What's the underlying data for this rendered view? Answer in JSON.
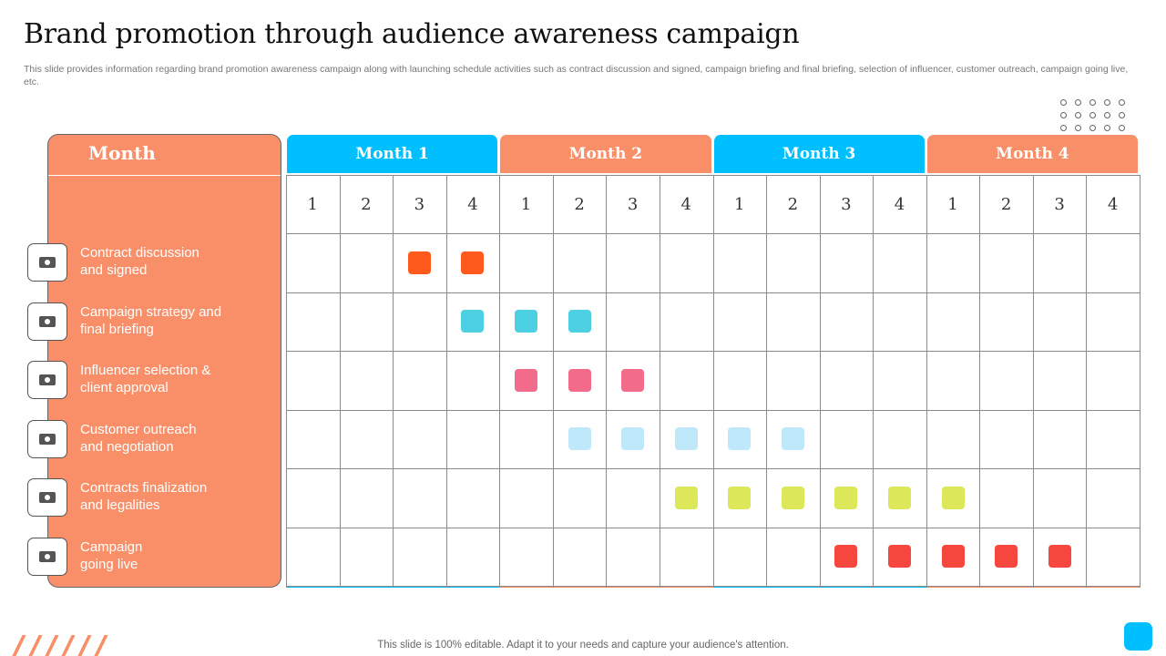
{
  "title": "Brand promotion through audience awareness campaign",
  "subtitle": "This slide provides information regarding brand promotion awareness campaign along with launching schedule activities such as contract discussion and signed, campaign briefing and final briefing, selection of influencer, customer outreach, campaign going live, etc.",
  "left_header": "Month",
  "months": [
    {
      "label": "Month 1",
      "color": "#00bfff"
    },
    {
      "label": "Month 2",
      "color": "#f88f68"
    },
    {
      "label": "Month 3",
      "color": "#00bfff"
    },
    {
      "label": "Month 4",
      "color": "#f88f68"
    }
  ],
  "weeks": [
    "1",
    "2",
    "3",
    "4",
    "1",
    "2",
    "3",
    "4",
    "1",
    "2",
    "3",
    "4",
    "1",
    "2",
    "3",
    "4"
  ],
  "activities": [
    {
      "label": "Contract discussion\nand signed",
      "icon": "handshake-icon",
      "color": "#fe5a1d",
      "weeks": [
        3,
        4
      ]
    },
    {
      "label": "Campaign strategy and\nfinal briefing",
      "icon": "phone-megaphone-icon",
      "color": "#4dd0e1",
      "weeks": [
        4,
        5,
        6
      ]
    },
    {
      "label": "Influencer  selection &\nclient approval",
      "icon": "presentation-team-icon",
      "color": "#f26b8a",
      "weeks": [
        5,
        6,
        7
      ]
    },
    {
      "label": "Customer outreach\nand negotiation",
      "icon": "network-icon",
      "color": "#bfe9fb",
      "weeks": [
        6,
        7,
        8,
        9,
        10
      ]
    },
    {
      "label": "Contracts finalization\nand legalities",
      "icon": "contract-handshake-icon",
      "color": "#dce85a",
      "weeks": [
        8,
        9,
        10,
        11,
        12,
        13
      ]
    },
    {
      "label": "Campaign\ngoing live",
      "icon": "mobile-launch-icon",
      "color": "#f6473f",
      "weeks": [
        11,
        12,
        13,
        14,
        15
      ]
    }
  ],
  "footer": "This slide is 100% editable. Adapt it to your needs and capture your audience's attention."
}
